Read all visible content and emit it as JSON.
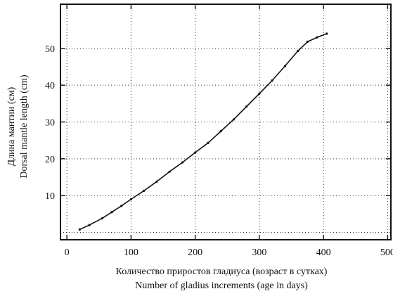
{
  "chart_data": {
    "type": "line",
    "title": "",
    "xlabel_ru": "Количество приростов гладиуса (возраст в сутках)",
    "xlabel": "Number of gladius increments (age in days)",
    "ylabel_ru": "Длина мантии (см)",
    "ylabel": "Dorsal mantle length (cm)",
    "xlim": [
      -10,
      505
    ],
    "ylim": [
      -2,
      62
    ],
    "xticks": [
      0,
      100,
      200,
      300,
      400,
      500
    ],
    "xtick_labels": [
      "0",
      "100",
      "200",
      "300",
      "400",
      "500"
    ],
    "yticks": [
      10,
      20,
      30,
      40,
      50
    ],
    "ytick_labels": [
      "10",
      "20",
      "30",
      "40",
      "50"
    ],
    "grid": true,
    "legend": "none",
    "series": [
      {
        "x": [
          20,
          35,
          55,
          70,
          85,
          100,
          120,
          140,
          160,
          180,
          200,
          220,
          240,
          260,
          280,
          300,
          320,
          340,
          360,
          375,
          390,
          405
        ],
        "values": [
          0.8,
          2.0,
          3.8,
          5.5,
          7.2,
          9.0,
          11.3,
          13.8,
          16.5,
          19.0,
          21.7,
          24.3,
          27.5,
          30.7,
          34.2,
          37.7,
          41.3,
          45.2,
          49.3,
          51.8,
          53.0,
          54.0
        ]
      }
    ]
  }
}
